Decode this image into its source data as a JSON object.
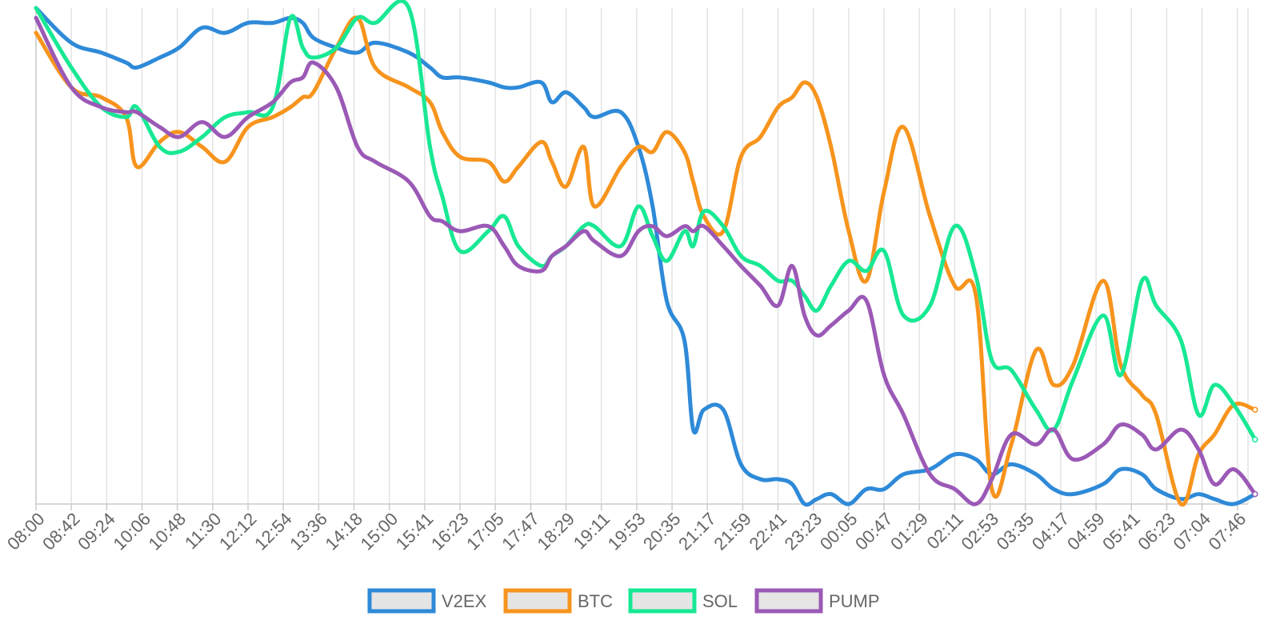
{
  "chart_data": {
    "type": "line",
    "title": "",
    "xlabel": "",
    "ylabel": "",
    "grid": true,
    "legend": "bottom-center",
    "ylim": [
      0,
      100
    ],
    "categories": [
      "08:00",
      "08:42",
      "09:24",
      "10:06",
      "10:48",
      "11:30",
      "12:12",
      "12:54",
      "13:36",
      "14:18",
      "15:00",
      "15:41",
      "16:23",
      "17:05",
      "17:47",
      "18:29",
      "19:11",
      "19:53",
      "20:35",
      "21:17",
      "21:59",
      "22:41",
      "23:23",
      "00:05",
      "00:47",
      "01:29",
      "02:11",
      "02:53",
      "03:35",
      "04:17",
      "04:59",
      "05:41",
      "06:23",
      "07:04",
      "07:46"
    ],
    "x": [
      0,
      1,
      1.85,
      2.55,
      2.85,
      3.5,
      4.05,
      4.7,
      5.35,
      6,
      6.7,
      7.2,
      7.55,
      7.85,
      8.5,
      9.1,
      9.6,
      10.55,
      11.15,
      11.5,
      12,
      12.8,
      13.25,
      13.65,
      14.3,
      14.6,
      15,
      15.5,
      15.8,
      16.55,
      17.05,
      17.45,
      17.85,
      18.35,
      18.6,
      18.9,
      19.45,
      19.95,
      20.5,
      21,
      21.4,
      21.75,
      22.1,
      22.5,
      23,
      23.5,
      24,
      24.55,
      25.3,
      26,
      26.6,
      27.05,
      27.6,
      28.3,
      28.8,
      29.35,
      30.2,
      30.7,
      31.3,
      31.7,
      32.4,
      32.9,
      33.35,
      33.9,
      34.5
    ],
    "series": [
      {
        "name": "V2EX",
        "color": "#2e8ad8",
        "values": [
          100,
          93,
          91,
          89,
          88,
          90,
          92,
          96,
          95,
          97,
          97,
          98,
          97,
          94,
          92,
          91,
          93,
          91,
          88,
          86,
          86,
          85,
          84,
          84,
          85,
          81,
          83,
          80,
          78,
          79,
          72,
          60,
          41,
          33,
          15,
          19,
          19,
          8,
          5,
          5,
          4,
          0,
          1,
          2,
          0,
          3,
          3,
          6,
          7,
          10,
          9,
          6,
          8,
          6,
          3,
          2,
          4,
          7,
          6,
          3,
          1,
          2,
          1,
          0,
          2
        ],
        "values_note": ""
      },
      {
        "name": "BTC",
        "color": "#f7941d",
        "values": [
          95,
          84,
          82,
          78,
          68,
          73,
          75,
          72,
          69,
          76,
          78,
          80,
          82,
          83,
          92,
          98,
          88,
          84,
          81,
          75,
          70,
          69,
          65,
          68,
          73,
          69,
          64,
          72,
          60,
          68,
          72,
          71,
          75,
          71,
          65,
          58,
          55,
          70,
          74,
          80,
          82,
          85,
          82,
          72,
          55,
          45,
          63,
          76,
          58,
          44,
          42,
          3,
          12,
          31,
          24,
          28,
          45,
          28,
          22,
          18,
          0,
          10,
          14,
          20,
          19
        ],
        "values_note": ""
      },
      {
        "name": "SOL",
        "color": "#18e894",
        "values": [
          100,
          88,
          80,
          78,
          80,
          72,
          71,
          74,
          78,
          79,
          80,
          98,
          92,
          90,
          92,
          98,
          97,
          100,
          72,
          62,
          51,
          55,
          58,
          52,
          48,
          50,
          52,
          56,
          56,
          52,
          60,
          54,
          49,
          55,
          52,
          59,
          56,
          50,
          48,
          45,
          45,
          42,
          39,
          44,
          49,
          47,
          51,
          38,
          40,
          56,
          46,
          29,
          27,
          19,
          15,
          25,
          38,
          26,
          45,
          40,
          33,
          18,
          24,
          20,
          13
        ],
        "values_note": ""
      },
      {
        "name": "PUMP",
        "color": "#9b59b6",
        "values": [
          98,
          84,
          80,
          79,
          79,
          76,
          74,
          77,
          74,
          78,
          81,
          85,
          86,
          89,
          84,
          72,
          69,
          65,
          58,
          57,
          55,
          56,
          52,
          48,
          47,
          50,
          52,
          55,
          53,
          50,
          55,
          56,
          54,
          56,
          55,
          56,
          52,
          48,
          44,
          40,
          48,
          38,
          34,
          36,
          39,
          41,
          26,
          18,
          6,
          3,
          0,
          5,
          14,
          12,
          15,
          9,
          12,
          16,
          14,
          11,
          15,
          11,
          4,
          7,
          2
        ],
        "values_note": ""
      }
    ]
  }
}
